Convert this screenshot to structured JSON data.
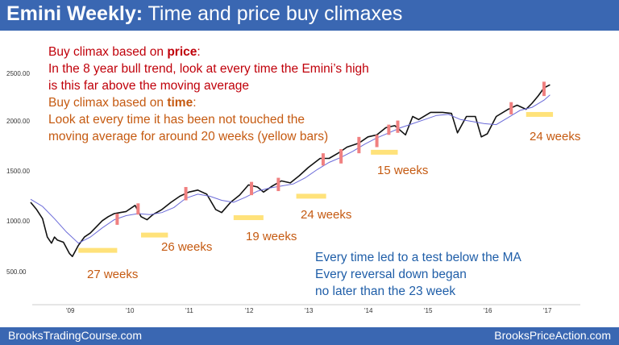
{
  "title": {
    "bold": "Emini Weekly:",
    "rest": " Time and price buy climaxes"
  },
  "notes": {
    "price_prefix": "Buy climax based on ",
    "price_keyword": "price",
    "price_suffix": ":",
    "price_line2": "In the 8 year bull trend, look at every time the Emini’s high",
    "price_line3": "is this far above the moving average",
    "time_prefix": "Buy climax based on ",
    "time_keyword": "time",
    "time_suffix": ":",
    "time_line2": "Look at every time it has been not touched the",
    "time_line3": "moving average for around 20 weeks (yellow bars)"
  },
  "summary": {
    "line1": "Every time led to a test below the MA",
    "line2": "Every reversal down began",
    "line3": "no later than the 23 week"
  },
  "week_labels": [
    "27 weeks",
    "26 weeks",
    "19 weeks",
    "24 weeks",
    "15 weeks",
    "24 weeks"
  ],
  "footer": {
    "left": "BrooksTradingCourse.com",
    "right": "BrooksPriceAction.com"
  },
  "colors": {
    "header": "#3a67b2",
    "price_text": "#c0000a",
    "time_text": "#c55a11",
    "summary_text": "#1f5ea8",
    "yellow_bar": "#ffe27a",
    "climax_bar": "#f08080",
    "ma_line": "#6a6ad8"
  },
  "chart_data": {
    "type": "line",
    "y_tick_labels": [
      "2500.00",
      "2000.00",
      "1500.00",
      "1000.00",
      "500.00"
    ],
    "y_ticks": [
      2500,
      2000,
      1500,
      1000,
      500
    ],
    "x_tick_labels": [
      "'09",
      "'10",
      "'11",
      "'12",
      "'13",
      "'14",
      "'15",
      "'16",
      "'17"
    ],
    "x_ticks": [
      2009,
      2010,
      2011,
      2012,
      2013,
      2014,
      2015,
      2016,
      2017
    ],
    "xlim": [
      2008.5,
      2017.6
    ],
    "ylim": [
      400,
      2600
    ],
    "price": [
      [
        2008.5,
        1220
      ],
      [
        2008.6,
        1150
      ],
      [
        2008.7,
        1060
      ],
      [
        2008.78,
        880
      ],
      [
        2008.85,
        820
      ],
      [
        2008.9,
        880
      ],
      [
        2008.95,
        850
      ],
      [
        2009.05,
        830
      ],
      [
        2009.15,
        720
      ],
      [
        2009.2,
        690
      ],
      [
        2009.3,
        800
      ],
      [
        2009.4,
        880
      ],
      [
        2009.5,
        920
      ],
      [
        2009.6,
        980
      ],
      [
        2009.7,
        1040
      ],
      [
        2009.8,
        1080
      ],
      [
        2009.9,
        1110
      ],
      [
        2010.0,
        1120
      ],
      [
        2010.1,
        1130
      ],
      [
        2010.25,
        1190
      ],
      [
        2010.35,
        1080
      ],
      [
        2010.45,
        1050
      ],
      [
        2010.55,
        1100
      ],
      [
        2010.7,
        1150
      ],
      [
        2010.85,
        1220
      ],
      [
        2011.0,
        1280
      ],
      [
        2011.15,
        1320
      ],
      [
        2011.3,
        1340
      ],
      [
        2011.45,
        1300
      ],
      [
        2011.6,
        1150
      ],
      [
        2011.7,
        1120
      ],
      [
        2011.85,
        1220
      ],
      [
        2012.0,
        1290
      ],
      [
        2012.15,
        1390
      ],
      [
        2012.3,
        1370
      ],
      [
        2012.4,
        1320
      ],
      [
        2012.55,
        1380
      ],
      [
        2012.7,
        1430
      ],
      [
        2012.85,
        1410
      ],
      [
        2013.0,
        1480
      ],
      [
        2013.15,
        1560
      ],
      [
        2013.35,
        1650
      ],
      [
        2013.5,
        1650
      ],
      [
        2013.65,
        1700
      ],
      [
        2013.8,
        1760
      ],
      [
        2014.0,
        1800
      ],
      [
        2014.15,
        1860
      ],
      [
        2014.3,
        1880
      ],
      [
        2014.45,
        1950
      ],
      [
        2014.6,
        1970
      ],
      [
        2014.78,
        1880
      ],
      [
        2014.9,
        2060
      ],
      [
        2015.0,
        2030
      ],
      [
        2015.2,
        2100
      ],
      [
        2015.4,
        2100
      ],
      [
        2015.55,
        2090
      ],
      [
        2015.65,
        1900
      ],
      [
        2015.8,
        2060
      ],
      [
        2015.95,
        2060
      ],
      [
        2016.05,
        1860
      ],
      [
        2016.15,
        1890
      ],
      [
        2016.3,
        2060
      ],
      [
        2016.5,
        2130
      ],
      [
        2016.65,
        2170
      ],
      [
        2016.8,
        2130
      ],
      [
        2016.9,
        2190
      ],
      [
        2017.0,
        2260
      ],
      [
        2017.1,
        2340
      ],
      [
        2017.2,
        2370
      ]
    ],
    "moving_average": [
      [
        2008.5,
        1250
      ],
      [
        2008.7,
        1180
      ],
      [
        2008.9,
        1060
      ],
      [
        2009.1,
        930
      ],
      [
        2009.3,
        820
      ],
      [
        2009.5,
        880
      ],
      [
        2009.7,
        970
      ],
      [
        2009.9,
        1050
      ],
      [
        2010.1,
        1090
      ],
      [
        2010.3,
        1110
      ],
      [
        2010.5,
        1100
      ],
      [
        2010.7,
        1120
      ],
      [
        2010.9,
        1170
      ],
      [
        2011.1,
        1260
      ],
      [
        2011.3,
        1300
      ],
      [
        2011.5,
        1280
      ],
      [
        2011.7,
        1240
      ],
      [
        2011.9,
        1220
      ],
      [
        2012.1,
        1270
      ],
      [
        2012.3,
        1330
      ],
      [
        2012.5,
        1360
      ],
      [
        2012.7,
        1380
      ],
      [
        2012.9,
        1400
      ],
      [
        2013.1,
        1460
      ],
      [
        2013.3,
        1540
      ],
      [
        2013.5,
        1610
      ],
      [
        2013.7,
        1660
      ],
      [
        2013.9,
        1720
      ],
      [
        2014.1,
        1790
      ],
      [
        2014.3,
        1850
      ],
      [
        2014.5,
        1900
      ],
      [
        2014.7,
        1950
      ],
      [
        2014.9,
        1990
      ],
      [
        2015.1,
        2030
      ],
      [
        2015.3,
        2070
      ],
      [
        2015.5,
        2080
      ],
      [
        2015.7,
        2030
      ],
      [
        2015.9,
        2010
      ],
      [
        2016.1,
        1990
      ],
      [
        2016.3,
        1980
      ],
      [
        2016.5,
        2050
      ],
      [
        2016.7,
        2120
      ],
      [
        2016.9,
        2150
      ],
      [
        2017.1,
        2220
      ],
      [
        2017.2,
        2270
      ]
    ],
    "yellow_bars": [
      {
        "x0": 2009.3,
        "x1": 2009.95,
        "y": 750
      },
      {
        "x0": 2010.35,
        "x1": 2010.8,
        "y": 900
      },
      {
        "x0": 2011.9,
        "x1": 2012.4,
        "y": 1070
      },
      {
        "x0": 2012.95,
        "x1": 2013.45,
        "y": 1280
      },
      {
        "x0": 2014.2,
        "x1": 2014.65,
        "y": 1710
      },
      {
        "x0": 2016.8,
        "x1": 2017.25,
        "y": 2080
      }
    ],
    "climax_bars": [
      {
        "x": 2009.95,
        "low": 1000,
        "high": 1110
      },
      {
        "x": 2010.3,
        "low": 1100,
        "high": 1210
      },
      {
        "x": 2011.1,
        "low": 1240,
        "high": 1370
      },
      {
        "x": 2012.2,
        "low": 1290,
        "high": 1420
      },
      {
        "x": 2012.65,
        "low": 1330,
        "high": 1460
      },
      {
        "x": 2013.4,
        "low": 1580,
        "high": 1700
      },
      {
        "x": 2013.7,
        "low": 1600,
        "high": 1740
      },
      {
        "x": 2014.0,
        "low": 1700,
        "high": 1860
      },
      {
        "x": 2014.3,
        "low": 1760,
        "high": 1880
      },
      {
        "x": 2014.5,
        "low": 1880,
        "high": 1980
      },
      {
        "x": 2014.65,
        "low": 1900,
        "high": 2020
      },
      {
        "x": 2016.55,
        "low": 2080,
        "high": 2200
      },
      {
        "x": 2017.1,
        "low": 2260,
        "high": 2400
      }
    ]
  }
}
